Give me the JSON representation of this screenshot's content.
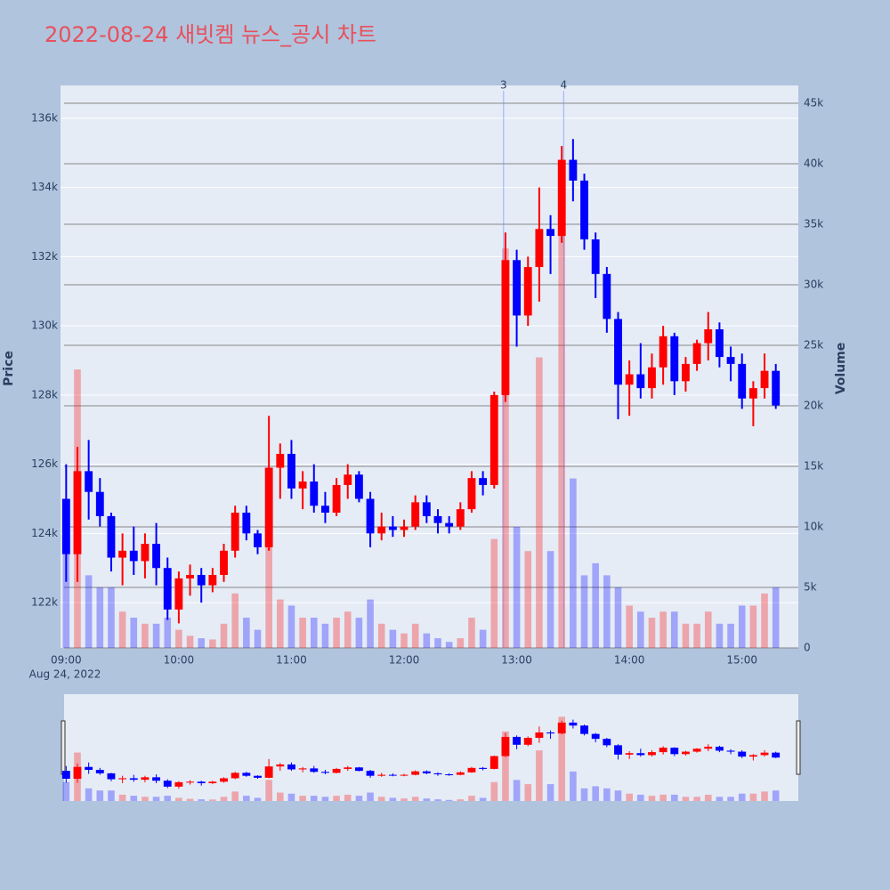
{
  "chart_data": {
    "type": "candlestick",
    "title": "2022-08-24 새빗켐 뉴스_공시 차트",
    "y_label": "Price",
    "y2_label": "Volume",
    "date_label": "Aug 24, 2022",
    "increasing_color": "#ff0000",
    "decreasing_color": "#0000ff",
    "x": [
      "09:00",
      "09:06",
      "09:12",
      "09:18",
      "09:24",
      "09:30",
      "09:36",
      "09:42",
      "09:48",
      "09:54",
      "10:00",
      "10:06",
      "10:12",
      "10:18",
      "10:24",
      "10:30",
      "10:36",
      "10:42",
      "10:48",
      "10:54",
      "11:00",
      "11:06",
      "11:12",
      "11:18",
      "11:24",
      "11:30",
      "11:36",
      "11:42",
      "11:48",
      "11:54",
      "12:00",
      "12:06",
      "12:12",
      "12:18",
      "12:24",
      "12:30",
      "12:36",
      "12:42",
      "12:48",
      "12:54",
      "13:00",
      "13:06",
      "13:12",
      "13:18",
      "13:24",
      "13:30",
      "13:36",
      "13:42",
      "13:48",
      "13:54",
      "14:00",
      "14:06",
      "14:12",
      "14:18",
      "14:24",
      "14:30",
      "14:36",
      "14:42",
      "14:48",
      "14:54",
      "15:00",
      "15:06",
      "15:12",
      "15:18"
    ],
    "open": [
      125000,
      123400,
      125800,
      125200,
      124500,
      123300,
      123500,
      123200,
      123700,
      123000,
      121800,
      122700,
      122800,
      122500,
      122800,
      123500,
      124600,
      124000,
      123600,
      125900,
      126300,
      125300,
      125500,
      124800,
      124600,
      125400,
      125700,
      125000,
      124000,
      124200,
      124100,
      124200,
      124900,
      124500,
      124300,
      124200,
      124700,
      125600,
      125400,
      128000,
      131900,
      130300,
      131700,
      132800,
      132600,
      134800,
      134200,
      132500,
      131500,
      130200,
      128300,
      128600,
      128200,
      128800,
      129700,
      128400,
      128900,
      129500,
      129900,
      129100,
      128900,
      127900,
      128200,
      128700
    ],
    "high": [
      126000,
      126500,
      126700,
      125600,
      124600,
      124000,
      124200,
      124000,
      124300,
      123300,
      122900,
      123100,
      123000,
      123000,
      123700,
      124800,
      124800,
      124100,
      127400,
      126600,
      126700,
      125800,
      126000,
      125200,
      125600,
      126000,
      125800,
      125200,
      124600,
      124500,
      124400,
      125100,
      125100,
      124700,
      124500,
      124900,
      125800,
      125800,
      128100,
      132700,
      132200,
      132000,
      134000,
      133200,
      135200,
      135400,
      134400,
      132700,
      131700,
      130400,
      129000,
      129500,
      129200,
      130000,
      129800,
      129100,
      129600,
      130400,
      130100,
      129400,
      129200,
      128400,
      129200,
      128900
    ],
    "low": [
      122600,
      122600,
      124400,
      124200,
      122900,
      122500,
      122800,
      122700,
      122500,
      121500,
      121400,
      122200,
      122000,
      122300,
      122600,
      123300,
      123800,
      123400,
      123500,
      125000,
      125000,
      124700,
      124600,
      124300,
      124500,
      125000,
      124900,
      123600,
      123800,
      123900,
      123900,
      124100,
      124300,
      124000,
      124000,
      124100,
      124600,
      125100,
      125300,
      127800,
      129400,
      130000,
      130700,
      131500,
      132400,
      133600,
      132200,
      130800,
      129800,
      127300,
      127400,
      127900,
      127900,
      128300,
      128000,
      128100,
      128700,
      129000,
      128800,
      128400,
      127600,
      127100,
      127900,
      127600
    ],
    "close": [
      123400,
      125800,
      125200,
      124500,
      123300,
      123500,
      123200,
      123700,
      123000,
      121800,
      122700,
      122800,
      122500,
      122800,
      123500,
      124600,
      124000,
      123600,
      125900,
      126300,
      125300,
      125500,
      124800,
      124600,
      125400,
      125700,
      125000,
      124000,
      124200,
      124100,
      124200,
      124900,
      124500,
      124300,
      124200,
      124700,
      125600,
      125400,
      128000,
      131900,
      130300,
      131700,
      132800,
      132600,
      134800,
      134200,
      132500,
      131500,
      130200,
      128300,
      128600,
      128200,
      128800,
      129700,
      128400,
      128900,
      129500,
      129900,
      129100,
      128900,
      127900,
      128200,
      128700,
      127700
    ],
    "volume": [
      9000,
      23000,
      6000,
      5000,
      5000,
      3000,
      2500,
      2000,
      2000,
      2500,
      1500,
      1000,
      800,
      700,
      2000,
      4500,
      2500,
      1500,
      10000,
      4000,
      3500,
      2500,
      2500,
      2000,
      2500,
      3000,
      2500,
      4000,
      2000,
      1500,
      1200,
      2000,
      1200,
      800,
      500,
      800,
      2500,
      1500,
      9000,
      33000,
      10000,
      8000,
      24000,
      8000,
      40000,
      14000,
      6000,
      7000,
      6000,
      5000,
      3500,
      3000,
      2500,
      3000,
      3000,
      2000,
      2000,
      3000,
      2000,
      2000,
      3500,
      3500,
      4500,
      5000
    ],
    "annotations": [
      {
        "x": "12:53",
        "text": "3"
      },
      {
        "x": "13:25",
        "text": "4"
      }
    ],
    "xlim": [
      "08:57",
      "15:30"
    ],
    "xticks": [
      "09:00",
      "10:00",
      "11:00",
      "12:00",
      "13:00",
      "14:00",
      "15:00"
    ],
    "ylim": [
      120690,
      136950
    ],
    "yticks": [
      {
        "value": 122000,
        "label": "122k"
      },
      {
        "value": 124000,
        "label": "124k"
      },
      {
        "value": 126000,
        "label": "126k"
      },
      {
        "value": 128000,
        "label": "128k"
      },
      {
        "value": 130000,
        "label": "130k"
      },
      {
        "value": 132000,
        "label": "132k"
      },
      {
        "value": 134000,
        "label": "134k"
      },
      {
        "value": 136000,
        "label": "136k"
      }
    ],
    "y2lim": [
      0,
      46470
    ],
    "y2ticks": [
      0,
      {
        "value": 5000,
        "label": "5k"
      },
      {
        "value": 10000,
        "label": "10k"
      },
      {
        "value": 15000,
        "label": "15k"
      },
      {
        "value": 20000,
        "label": "20k"
      },
      {
        "value": 25000,
        "label": "25k"
      },
      {
        "value": 30000,
        "label": "30k"
      },
      {
        "value": 35000,
        "label": "35k"
      },
      {
        "value": 40000,
        "label": "40k"
      },
      {
        "value": 45000,
        "label": "45k"
      }
    ],
    "grid": true,
    "range_slider": true
  }
}
